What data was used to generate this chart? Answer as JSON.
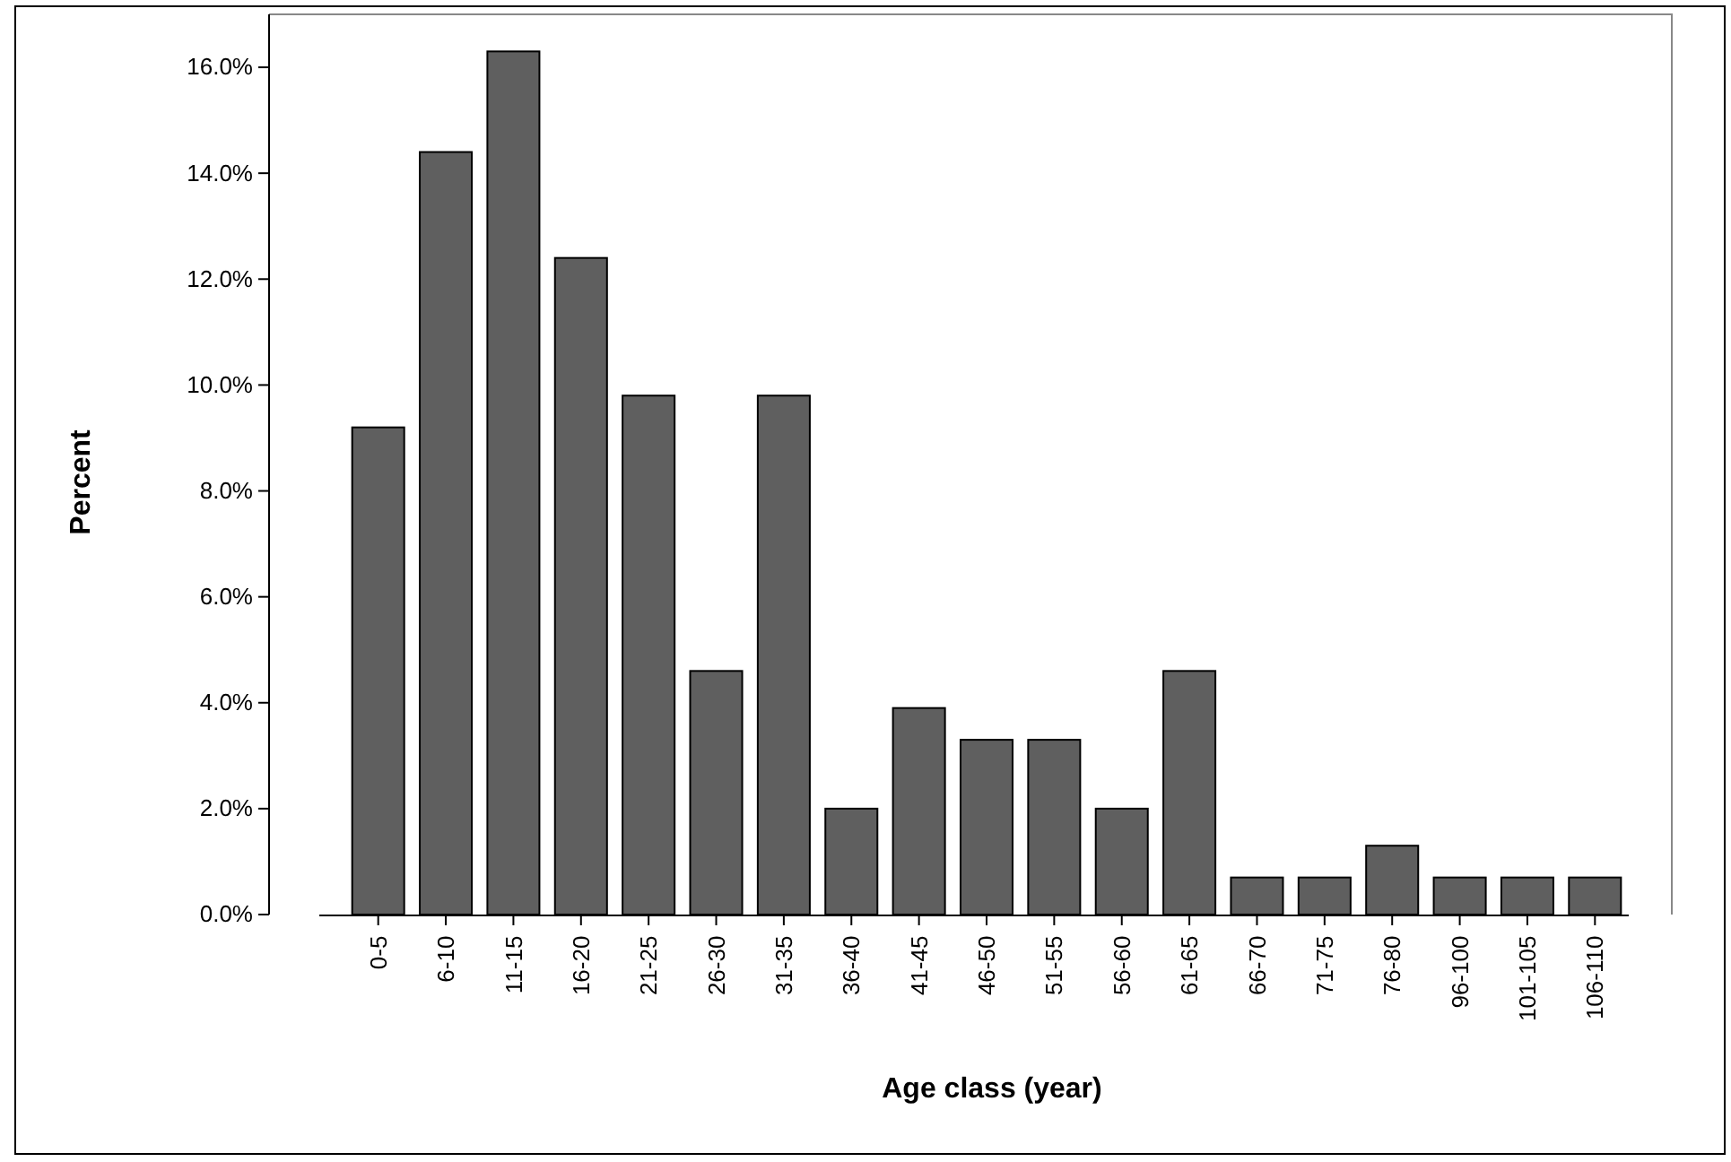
{
  "chart_data": {
    "type": "bar",
    "xlabel": "Age class (year)",
    "ylabel": "Percent",
    "categories": [
      "0-5",
      "6-10",
      "11-15",
      "16-20",
      "21-25",
      "26-30",
      "31-35",
      "36-40",
      "41-45",
      "46-50",
      "51-55",
      "56-60",
      "61-65",
      "66-70",
      "71-75",
      "76-80",
      "96-100",
      "101-105",
      "106-110"
    ],
    "values": [
      9.2,
      14.4,
      16.3,
      12.4,
      9.8,
      4.6,
      9.8,
      2.0,
      3.9,
      3.3,
      3.3,
      2.0,
      4.6,
      0.7,
      0.7,
      1.3,
      0.7,
      0.7,
      0.7
    ],
    "color": "#5f5f5f",
    "ylim": [
      0,
      17
    ],
    "yticks": [
      {
        "value": 0,
        "label": "0.0%"
      },
      {
        "value": 2,
        "label": "2.0%"
      },
      {
        "value": 4,
        "label": "4.0%"
      },
      {
        "value": 6,
        "label": "6.0%"
      },
      {
        "value": 8,
        "label": "8.0%"
      },
      {
        "value": 10,
        "label": "10.0%"
      },
      {
        "value": 12,
        "label": "12.0%"
      },
      {
        "value": 14,
        "label": "14.0%"
      },
      {
        "value": 16,
        "label": "16.0%"
      }
    ],
    "grid": false
  }
}
